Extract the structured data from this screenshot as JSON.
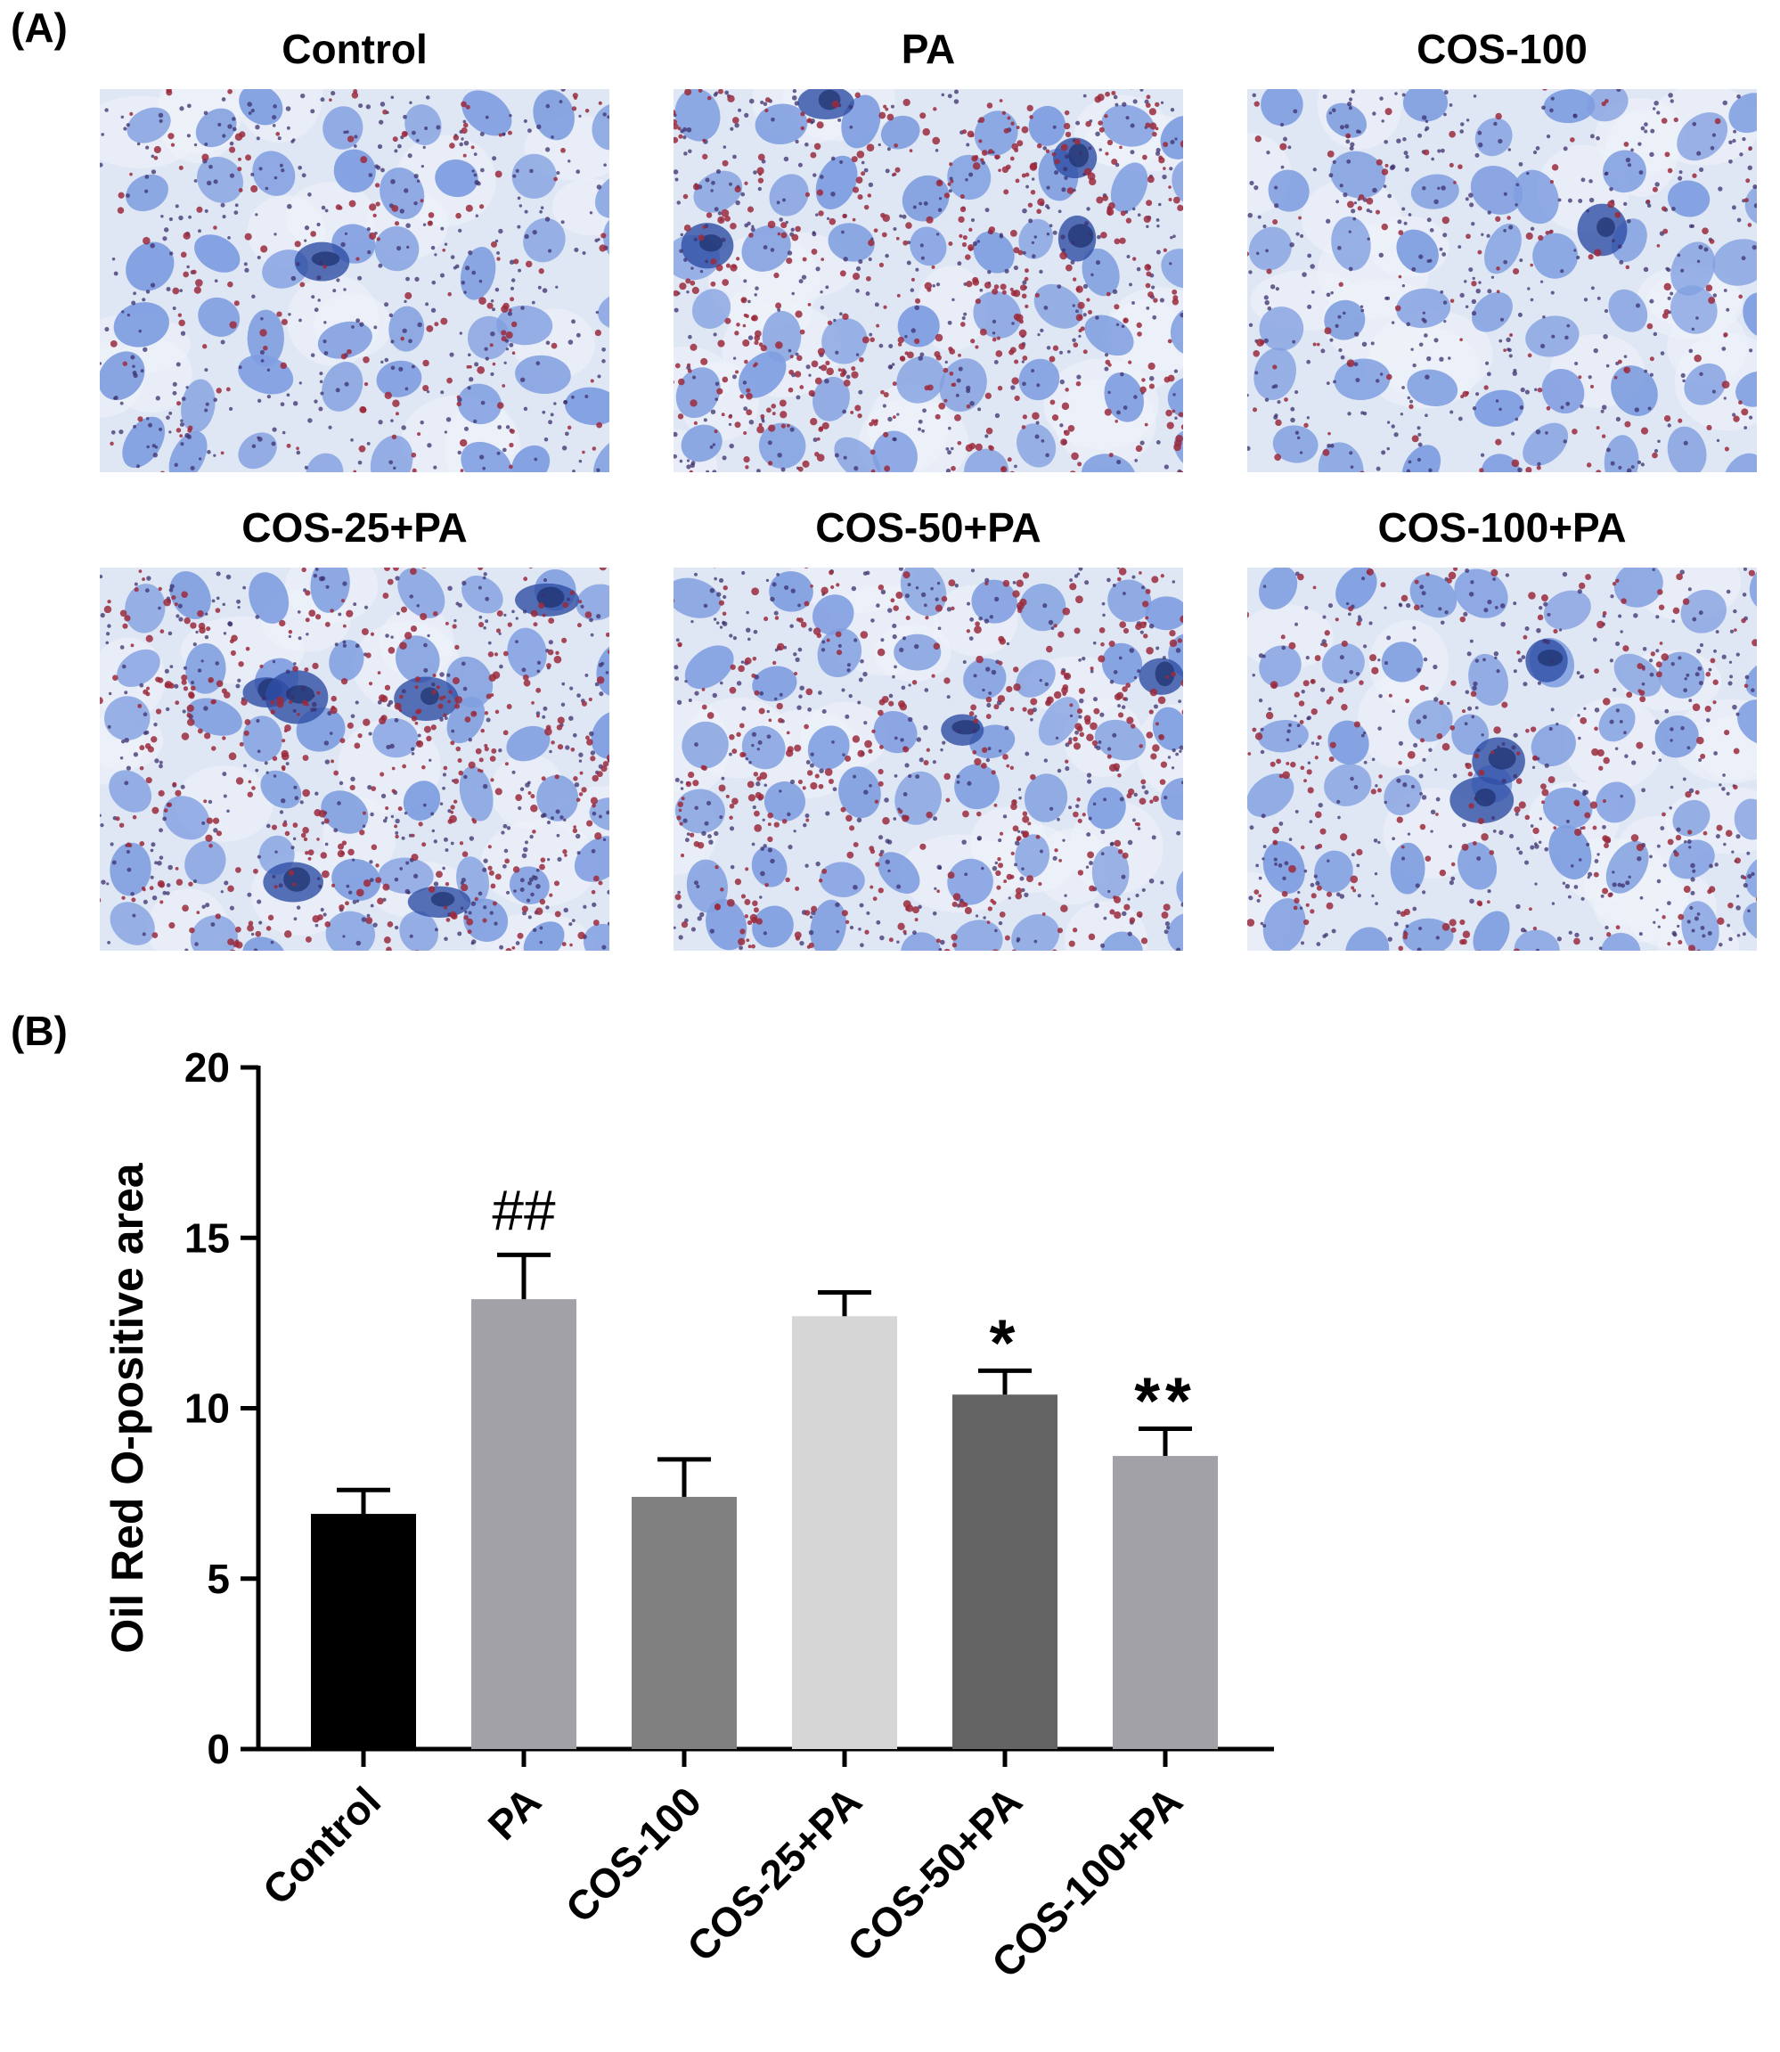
{
  "panel_a": {
    "label": "(A)",
    "images": [
      {
        "title": "Control",
        "red_density": 0.25,
        "dark_clusters": 1
      },
      {
        "title": "PA",
        "red_density": 1.0,
        "dark_clusters": 4
      },
      {
        "title": "COS-100",
        "red_density": 0.2,
        "dark_clusters": 1
      },
      {
        "title": "COS-25+PA",
        "red_density": 0.8,
        "dark_clusters": 6
      },
      {
        "title": "COS-50+PA",
        "red_density": 0.75,
        "dark_clusters": 2
      },
      {
        "title": "COS-100+PA",
        "red_density": 0.45,
        "dark_clusters": 3
      }
    ],
    "colors": {
      "background": "#dfe7f4",
      "nucleus": "#7f9ee0",
      "lipid": "#9b2a3c",
      "dot": "#3c2f6e"
    }
  },
  "panel_b": {
    "label": "(B)"
  },
  "chart_data": {
    "type": "bar",
    "title": "",
    "xlabel": "",
    "ylabel": "Oil Red O-positive area",
    "ylim": [
      0,
      20
    ],
    "yticks": [
      "0",
      "5",
      "10",
      "15",
      "20"
    ],
    "categories": [
      "Control",
      "PA",
      "COS-100",
      "COS-25+PA",
      "COS-50+PA",
      "COS-100+PA"
    ],
    "values": [
      6.9,
      13.2,
      7.4,
      12.7,
      10.4,
      8.6
    ],
    "errors": [
      0.7,
      1.3,
      1.1,
      0.7,
      0.7,
      0.8
    ],
    "annotations": [
      "",
      "##",
      "",
      "",
      "*",
      "**"
    ],
    "colors": [
      "#000000",
      "#a2a1a8",
      "#808080",
      "#d6d6d6",
      "#646464",
      "#a2a1a8"
    ]
  }
}
